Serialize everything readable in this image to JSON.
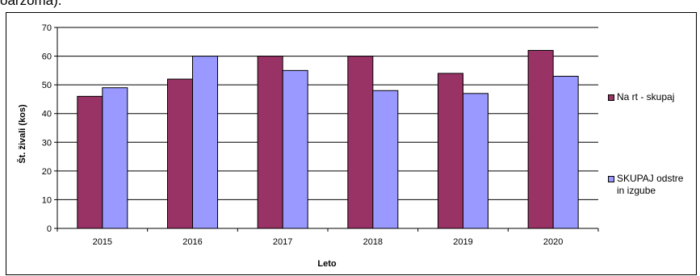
{
  "top_text_fragment": "oarzoma).",
  "chart_data": {
    "type": "bar",
    "categories": [
      "2015",
      "2016",
      "2017",
      "2018",
      "2019",
      "2020"
    ],
    "series": [
      {
        "name": "Na rt - skupaj",
        "values": [
          46,
          52,
          60,
          60,
          54,
          62
        ],
        "color": "#993366"
      },
      {
        "name": "SKUPAJ odstre\nin izgube",
        "values": [
          49,
          60,
          55,
          48,
          47,
          53
        ],
        "color": "#9999ff"
      }
    ],
    "xlabel": "Leto",
    "ylabel": "Št. živali (kos)",
    "ylim": [
      0,
      70
    ],
    "yticks": [
      "0",
      "10",
      "20",
      "30",
      "40",
      "50",
      "60",
      "70"
    ],
    "grid": true,
    "legend_position": "right"
  }
}
